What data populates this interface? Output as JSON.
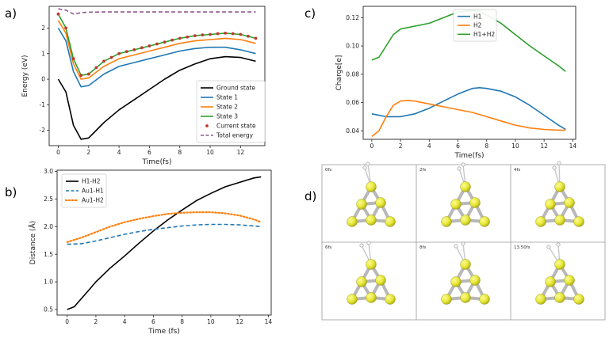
{
  "chart_data": [
    {
      "panel_label": "a)",
      "type": "line",
      "xlabel": "Time(fs)",
      "ylabel": "Energy (eV)",
      "xlim": [
        -0.6,
        13.6
      ],
      "ylim": [
        -2.6,
        2.85
      ],
      "xticks": [
        0,
        2,
        4,
        6,
        8,
        10,
        12
      ],
      "yticks": [
        -2,
        -1,
        0,
        1,
        2
      ],
      "legend_position": "lower-right",
      "series": [
        {
          "name": "Ground state",
          "color": "#000000",
          "style": "solid",
          "x": [
            0,
            0.5,
            1,
            1.5,
            2,
            3,
            4,
            5,
            6,
            7,
            8,
            9,
            10,
            11,
            12,
            13
          ],
          "y": [
            0.0,
            -0.5,
            -1.8,
            -2.35,
            -2.3,
            -1.7,
            -1.2,
            -0.8,
            -0.4,
            0.0,
            0.35,
            0.6,
            0.8,
            0.88,
            0.85,
            0.7
          ]
        },
        {
          "name": "State 1",
          "color": "#1f77b4",
          "style": "solid",
          "x": [
            0,
            0.5,
            1,
            1.5,
            2,
            3,
            4,
            5,
            6,
            7,
            8,
            9,
            10,
            11,
            12,
            13
          ],
          "y": [
            2.0,
            1.5,
            0.3,
            -0.3,
            -0.25,
            0.2,
            0.5,
            0.65,
            0.8,
            0.95,
            1.1,
            1.2,
            1.25,
            1.25,
            1.15,
            1.0
          ]
        },
        {
          "name": "State 2",
          "color": "#ff7f0e",
          "style": "solid",
          "x": [
            0,
            0.5,
            1,
            1.5,
            2,
            3,
            4,
            5,
            6,
            7,
            8,
            9,
            10,
            11,
            12,
            13
          ],
          "y": [
            2.3,
            1.8,
            0.6,
            0.0,
            0.05,
            0.5,
            0.8,
            0.95,
            1.1,
            1.25,
            1.4,
            1.5,
            1.55,
            1.6,
            1.55,
            1.4
          ]
        },
        {
          "name": "State 3",
          "color": "#2ca02c",
          "style": "solid",
          "x": [
            0,
            0.5,
            1,
            1.5,
            2,
            3,
            4,
            5,
            6,
            7,
            8,
            9,
            10,
            11,
            12,
            13
          ],
          "y": [
            2.55,
            2.0,
            0.8,
            0.15,
            0.2,
            0.7,
            1.0,
            1.15,
            1.3,
            1.45,
            1.6,
            1.7,
            1.75,
            1.8,
            1.75,
            1.6
          ]
        },
        {
          "name": "Current state",
          "color": "#c0392b",
          "style": "markers",
          "x": [
            0,
            0.5,
            1,
            1.5,
            2,
            2.5,
            3,
            3.5,
            4,
            4.5,
            5,
            5.5,
            6,
            6.5,
            7,
            7.5,
            8,
            8.5,
            9,
            9.5,
            10,
            10.5,
            11,
            11.5,
            12,
            12.5,
            13
          ],
          "y": [
            2.55,
            2.0,
            0.8,
            0.15,
            0.2,
            0.45,
            0.7,
            0.85,
            1.0,
            1.08,
            1.15,
            1.23,
            1.3,
            1.38,
            1.45,
            1.53,
            1.6,
            1.65,
            1.7,
            1.73,
            1.75,
            1.78,
            1.8,
            1.78,
            1.75,
            1.68,
            1.6
          ]
        },
        {
          "name": "Total energy",
          "color": "#8e5a8e",
          "style": "dashed",
          "x": [
            0,
            0.5,
            1,
            1.5,
            2,
            3,
            4,
            6,
            8,
            10,
            12,
            13
          ],
          "y": [
            2.75,
            2.7,
            2.55,
            2.6,
            2.62,
            2.63,
            2.63,
            2.63,
            2.63,
            2.63,
            2.63,
            2.63
          ]
        }
      ]
    },
    {
      "panel_label": "b)",
      "type": "line",
      "xlabel": "Time (fs)",
      "ylabel": "Distance (Å)",
      "xlim": [
        -0.7,
        14.2
      ],
      "ylim": [
        0.4,
        3.02
      ],
      "xticks": [
        0,
        2,
        4,
        6,
        8,
        10,
        12,
        14
      ],
      "yticks": [
        0.5,
        1.0,
        1.5,
        2.0,
        2.5,
        3.0
      ],
      "legend_position": "top-left",
      "series": [
        {
          "name": "H1-H2",
          "color": "#000000",
          "style": "solid",
          "x": [
            0,
            0.5,
            1,
            1.5,
            2,
            3,
            4,
            5,
            6,
            7,
            8,
            9,
            10,
            11,
            12,
            13,
            13.5
          ],
          "y": [
            0.5,
            0.55,
            0.7,
            0.85,
            1.0,
            1.25,
            1.47,
            1.7,
            1.92,
            2.12,
            2.3,
            2.47,
            2.6,
            2.72,
            2.8,
            2.88,
            2.9
          ]
        },
        {
          "name": "Au1-H1",
          "color": "#1f77b4",
          "style": "dashed",
          "x": [
            0,
            1,
            2,
            3,
            4,
            5,
            6,
            7,
            8,
            9,
            10,
            11,
            12,
            13,
            13.5
          ],
          "y": [
            1.68,
            1.69,
            1.74,
            1.8,
            1.86,
            1.91,
            1.95,
            1.98,
            2.01,
            2.03,
            2.04,
            2.04,
            2.03,
            2.01,
            2.0
          ]
        },
        {
          "name": "Au1-H2",
          "color": "#ff7f0e",
          "style": "dotted",
          "x": [
            0,
            1,
            2,
            3,
            4,
            5,
            6,
            7,
            8,
            9,
            10,
            11,
            12,
            13,
            13.5
          ],
          "y": [
            1.72,
            1.8,
            1.9,
            2.0,
            2.08,
            2.14,
            2.19,
            2.23,
            2.25,
            2.26,
            2.26,
            2.24,
            2.2,
            2.13,
            2.08
          ]
        }
      ]
    },
    {
      "panel_label": "c)",
      "type": "line",
      "xlabel": "Time(fs)",
      "ylabel": "Charge[e]",
      "xlim": [
        -0.6,
        14.2
      ],
      "ylim": [
        0.034,
        0.128
      ],
      "xticks": [
        0,
        2,
        4,
        6,
        8,
        10,
        12,
        14
      ],
      "yticks": [
        0.04,
        0.06,
        0.08,
        0.1,
        0.12
      ],
      "legend_position": "top-left",
      "series": [
        {
          "name": "H1",
          "color": "#1f77b4",
          "style": "solid",
          "x": [
            0,
            1,
            2,
            3,
            4,
            5,
            6,
            7,
            7.5,
            8,
            9,
            10,
            11,
            12,
            13,
            13.5
          ],
          "y": [
            0.052,
            0.05,
            0.05,
            0.052,
            0.056,
            0.061,
            0.066,
            0.07,
            0.0705,
            0.07,
            0.068,
            0.064,
            0.058,
            0.051,
            0.044,
            0.041
          ]
        },
        {
          "name": "H2",
          "color": "#ff7f0e",
          "style": "solid",
          "x": [
            0,
            0.5,
            1,
            1.5,
            2,
            2.5,
            3,
            4,
            5,
            6,
            7,
            8,
            9,
            10,
            11,
            12,
            13,
            13.5
          ],
          "y": [
            0.036,
            0.04,
            0.05,
            0.058,
            0.061,
            0.0615,
            0.061,
            0.059,
            0.057,
            0.055,
            0.053,
            0.05,
            0.047,
            0.044,
            0.042,
            0.041,
            0.0405,
            0.0405
          ]
        },
        {
          "name": "H1+H2",
          "color": "#2ca02c",
          "style": "solid",
          "x": [
            0,
            0.5,
            1,
            1.5,
            2,
            3,
            4,
            5,
            6,
            6.8,
            7.5,
            8,
            9,
            10,
            11,
            12,
            13,
            13.5
          ],
          "y": [
            0.09,
            0.092,
            0.1,
            0.108,
            0.112,
            0.114,
            0.116,
            0.12,
            0.124,
            0.125,
            0.1245,
            0.122,
            0.116,
            0.108,
            0.1,
            0.093,
            0.086,
            0.082
          ]
        }
      ]
    }
  ],
  "snapshots": {
    "panel_label": "d)",
    "frames": [
      {
        "label": "0fs",
        "h": [
          [
            -8,
            -24
          ],
          [
            -4,
            -29
          ]
        ]
      },
      {
        "label": "2fs",
        "h": [
          [
            -8,
            -23
          ],
          [
            -3,
            -28
          ]
        ]
      },
      {
        "label": "4fs",
        "h": [
          [
            -7,
            -24
          ],
          [
            -1,
            -30
          ]
        ]
      },
      {
        "label": "6fs",
        "h": [
          [
            -12,
            -24
          ],
          [
            -3,
            -27
          ]
        ]
      },
      {
        "label": "8fs",
        "h": [
          [
            -12,
            -23
          ],
          [
            -3,
            -26
          ]
        ]
      },
      {
        "label": "13.50fs",
        "h": [
          [
            -14,
            -22
          ],
          [
            -2,
            -25
          ]
        ]
      }
    ],
    "atom_color": "#e6e633",
    "bond_color": "#b8b8b8"
  }
}
